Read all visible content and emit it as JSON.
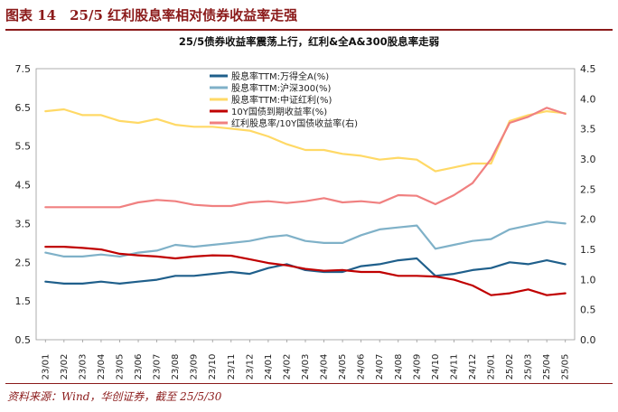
{
  "figure": {
    "header": "图表 14　25/5 红利股息率相对债券收益率走强",
    "source": "资料来源：Wind，华创证券，截至 25/5/30"
  },
  "chart_data": {
    "type": "line",
    "title": "25/5债券收益率震荡上行，红利&全A&300股息率走弱",
    "x_labels": [
      "23/01",
      "23/02",
      "23/03",
      "23/04",
      "23/05",
      "23/06",
      "23/07",
      "23/08",
      "23/09",
      "23/10",
      "23/11",
      "23/12",
      "24/01",
      "24/02",
      "24/03",
      "24/04",
      "24/05",
      "24/06",
      "24/07",
      "24/08",
      "24/09",
      "24/10",
      "24/11",
      "24/12",
      "25/01",
      "25/02",
      "25/03",
      "25/04",
      "25/05"
    ],
    "y_left": {
      "range": [
        0.5,
        7.5
      ],
      "ticks": [
        "7.5",
        "6.5",
        "5.5",
        "4.5",
        "3.5",
        "2.5",
        "1.5",
        "0.5"
      ]
    },
    "y_right": {
      "range": [
        0.0,
        4.5
      ],
      "ticks": [
        "4.5",
        "4.0",
        "3.5",
        "3.0",
        "2.5",
        "2.0",
        "1.5",
        "1.0",
        "0.5",
        "0.0"
      ]
    },
    "legend_position": "top-left",
    "series": [
      {
        "name": "股息率TTM:万得全A(%)",
        "color": "#1f5f8b",
        "axis": "left",
        "values": [
          2.0,
          1.95,
          1.95,
          2.0,
          1.95,
          2.0,
          2.05,
          2.15,
          2.15,
          2.2,
          2.25,
          2.2,
          2.35,
          2.45,
          2.3,
          2.25,
          2.25,
          2.4,
          2.45,
          2.55,
          2.6,
          2.15,
          2.2,
          2.3,
          2.35,
          2.5,
          2.45,
          2.55,
          2.45
        ]
      },
      {
        "name": "股息率TTM:沪深300(%)",
        "color": "#7fb1c8",
        "axis": "left",
        "values": [
          2.75,
          2.65,
          2.65,
          2.7,
          2.65,
          2.75,
          2.8,
          2.95,
          2.9,
          2.95,
          3.0,
          3.05,
          3.15,
          3.2,
          3.05,
          3.0,
          3.0,
          3.2,
          3.35,
          3.4,
          3.45,
          2.85,
          2.95,
          3.05,
          3.1,
          3.35,
          3.45,
          3.55,
          3.5
        ]
      },
      {
        "name": "股息率TTM:中证红利(%)",
        "color": "#ffd966",
        "axis": "left",
        "values": [
          6.4,
          6.45,
          6.3,
          6.3,
          6.15,
          6.1,
          6.2,
          6.05,
          6.0,
          6.0,
          5.95,
          5.9,
          5.75,
          5.55,
          5.4,
          5.4,
          5.3,
          5.25,
          5.15,
          5.2,
          5.15,
          4.85,
          4.95,
          5.05,
          5.05,
          6.15,
          6.3,
          6.4,
          6.35
        ]
      },
      {
        "name": "10Y国债到期收益率(%)",
        "color": "#c00000",
        "axis": "left",
        "values": [
          2.9,
          2.9,
          2.87,
          2.83,
          2.72,
          2.68,
          2.65,
          2.6,
          2.65,
          2.68,
          2.67,
          2.58,
          2.48,
          2.42,
          2.33,
          2.28,
          2.3,
          2.25,
          2.25,
          2.15,
          2.15,
          2.13,
          2.05,
          1.9,
          1.65,
          1.7,
          1.8,
          1.65,
          1.7
        ]
      },
      {
        "name": "红利股息率/10Y国债收益率(右)",
        "color": "#f08080",
        "axis": "right",
        "values": [
          2.2,
          2.2,
          2.2,
          2.2,
          2.2,
          2.28,
          2.32,
          2.3,
          2.24,
          2.22,
          2.22,
          2.28,
          2.3,
          2.27,
          2.3,
          2.35,
          2.28,
          2.3,
          2.27,
          2.4,
          2.39,
          2.25,
          2.4,
          2.6,
          3.0,
          3.6,
          3.7,
          3.85,
          3.75
        ]
      }
    ]
  }
}
